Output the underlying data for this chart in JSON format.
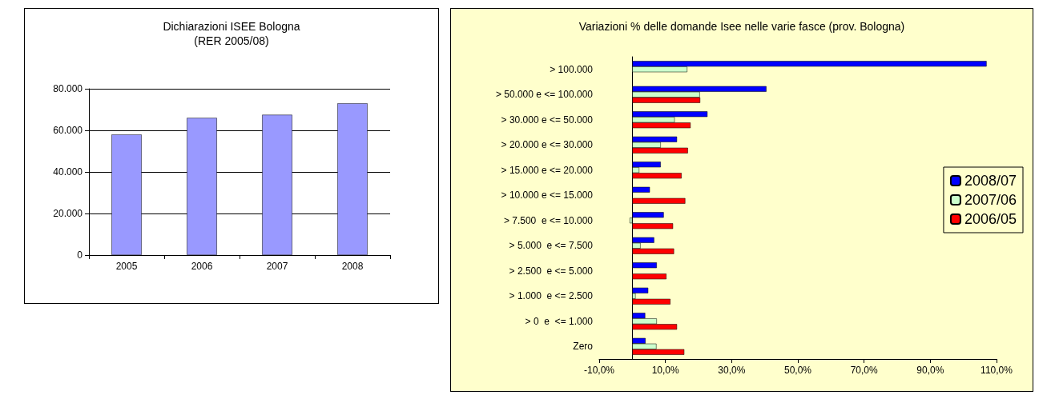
{
  "chart_data": [
    {
      "type": "bar",
      "title": "Dichiarazioni ISEE Bologna\n(RER 2005/08)",
      "categories": [
        "2005",
        "2006",
        "2007",
        "2008"
      ],
      "values": [
        58000,
        66000,
        67500,
        73000
      ],
      "color": "#9999ff",
      "ylim": [
        0,
        80000
      ],
      "yticks": [
        0,
        {
          "value": 20000,
          "label": "20.000"
        },
        {
          "value": 40000,
          "label": "40.000"
        },
        {
          "value": 60000,
          "label": "60.000"
        },
        {
          "value": 80000,
          "label": "80.000"
        }
      ],
      "grid": "y",
      "legend": false
    },
    {
      "type": "bar",
      "orientation": "horizontal",
      "title": "Variazioni % delle domande Isee nelle varie fasce (prov. Bologna)",
      "categories": [
        "> 100.000",
        "> 50.000 e <= 100.000",
        "> 30.000 e <= 50.000",
        "> 20.000 e <= 30.000",
        "> 15.000 e <= 20.000",
        "> 10.000 e <= 15.000",
        "> 7.500  e <= 10.000",
        "> 5.000  e <= 7.500",
        "> 2.500  e <= 5.000",
        "> 1.000  e <= 2.500",
        "> 0  e  <= 1.000",
        "Zero"
      ],
      "series": [
        {
          "name": "2008/07",
          "color": "#0000ff",
          "values": [
            107,
            40.5,
            22.7,
            13.5,
            8.6,
            5.3,
            9.5,
            6.6,
            7.4,
            4.8,
            3.9,
            4.0
          ]
        },
        {
          "name": "2007/06",
          "color": "#ccffcc",
          "values": [
            16.6,
            20.4,
            12.8,
            8.6,
            2.1,
            null,
            -0.8,
            2.5,
            null,
            1.0,
            7.4,
            7.3
          ]
        },
        {
          "name": "2006/05",
          "color": "#ff0000",
          "values": [
            null,
            20.5,
            17.6,
            16.8,
            14.9,
            16.0,
            12.3,
            12.6,
            10.3,
            11.5,
            13.5,
            15.7
          ]
        }
      ],
      "xlim": [
        -10,
        110
      ],
      "xticks": [
        {
          "value": -10,
          "label": "-10,0%"
        },
        {
          "value": 10,
          "label": "10,0%"
        },
        {
          "value": 30,
          "label": "30,0%"
        },
        {
          "value": 50,
          "label": "50,0%"
        },
        {
          "value": 70,
          "label": "70,0%"
        },
        {
          "value": 90,
          "label": "90,0%"
        },
        {
          "value": 110,
          "label": "110,0%"
        }
      ],
      "grid": false,
      "legend": "right"
    }
  ]
}
